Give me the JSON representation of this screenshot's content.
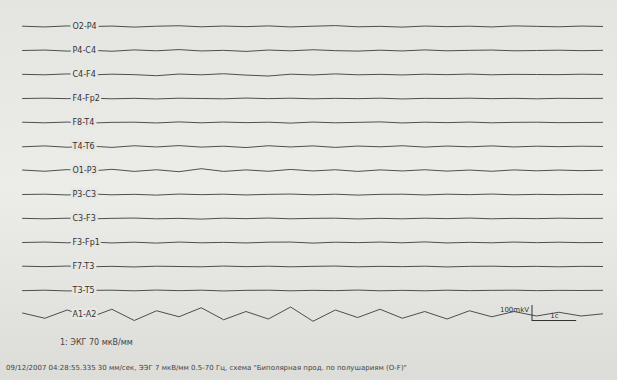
{
  "chart_data": {
    "type": "line",
    "tick_labels": false,
    "grid": false,
    "color": "#3c3c3c",
    "xlim": [
      0,
      13
    ],
    "ylim": [
      -80,
      80
    ],
    "x": [
      0,
      0.5,
      1,
      1.5,
      2,
      2.5,
      3,
      3.5,
      4,
      4.5,
      5,
      5.5,
      6,
      6.5,
      7,
      7.5,
      8,
      8.5,
      9,
      9.5,
      10,
      10.5,
      11,
      11.5,
      12,
      12.5,
      13
    ],
    "series": [
      {
        "name": "O2-P4",
        "values": [
          2,
          -3,
          4,
          -1,
          3,
          -4,
          2,
          5,
          -2,
          3,
          -1,
          4,
          -3,
          2,
          6,
          -2,
          1,
          -4,
          3,
          -1,
          2,
          -3,
          4,
          1,
          -2,
          3,
          0
        ]
      },
      {
        "name": "P4-C4",
        "values": [
          0,
          3,
          -4,
          2,
          -5,
          4,
          -2,
          6,
          -3,
          1,
          -6,
          3,
          -2,
          5,
          -1,
          -4,
          2,
          -3,
          4,
          -2,
          1,
          3,
          -2,
          0,
          2,
          -1,
          1
        ]
      },
      {
        "name": "C4-F4",
        "values": [
          1,
          -2,
          4,
          -3,
          2,
          -1,
          -8,
          3,
          -2,
          5,
          -4,
          -10,
          2,
          -3,
          4,
          -2,
          1,
          -3,
          2,
          -1,
          3,
          -2,
          1,
          0,
          -1,
          2,
          0
        ]
      },
      {
        "name": "F4-Fp2",
        "values": [
          0,
          2,
          -1,
          3,
          -2,
          1,
          -3,
          2,
          0,
          -2,
          3,
          -1,
          2,
          -2,
          1,
          -1,
          2,
          -3,
          1,
          0,
          2,
          -1,
          1,
          -2,
          1,
          0,
          1
        ]
      },
      {
        "name": "F8-T4",
        "values": [
          2,
          -2,
          3,
          -4,
          1,
          2,
          -3,
          4,
          -2,
          3,
          -1,
          2,
          -4,
          3,
          -2,
          1,
          4,
          -3,
          2,
          -1,
          3,
          -2,
          1,
          2,
          -1,
          0,
          1
        ]
      },
      {
        "name": "T4-T6",
        "values": [
          -2,
          4,
          -5,
          3,
          -6,
          5,
          -3,
          6,
          -4,
          2,
          -7,
          5,
          -3,
          4,
          -6,
          3,
          -2,
          5,
          -4,
          3,
          -2,
          4,
          -3,
          2,
          -1,
          2,
          0
        ]
      },
      {
        "name": "O1-P3",
        "values": [
          3,
          -5,
          6,
          -4,
          8,
          -6,
          5,
          -8,
          12,
          -6,
          4,
          -5,
          7,
          -3,
          5,
          -6,
          4,
          -3,
          5,
          -4,
          3,
          -5,
          4,
          -2,
          3,
          -1,
          2
        ]
      },
      {
        "name": "P3-C3",
        "values": [
          0,
          2,
          -3,
          4,
          -2,
          1,
          -4,
          3,
          -1,
          2,
          -3,
          1,
          3,
          -2,
          2,
          -4,
          1,
          2,
          -3,
          2,
          -1,
          3,
          -2,
          1,
          -1,
          1,
          0
        ]
      },
      {
        "name": "C3-F3",
        "values": [
          1,
          -2,
          2,
          -3,
          1,
          3,
          -2,
          1,
          -4,
          2,
          -1,
          3,
          -2,
          1,
          2,
          -3,
          1,
          -2,
          2,
          -1,
          3,
          -2,
          1,
          -1,
          2,
          0,
          1
        ]
      },
      {
        "name": "F3-Fp1",
        "values": [
          0,
          3,
          -2,
          4,
          -3,
          2,
          -4,
          3,
          -2,
          1,
          -3,
          2,
          3,
          -4,
          2,
          -1,
          3,
          -2,
          4,
          -3,
          1,
          -2,
          3,
          -1,
          2,
          -1,
          0
        ]
      },
      {
        "name": "F7-T3",
        "values": [
          2,
          -1,
          3,
          -2,
          1,
          -3,
          2,
          0,
          -2,
          3,
          -1,
          2,
          -2,
          1,
          3,
          -2,
          1,
          -1,
          2,
          -3,
          1,
          2,
          -1,
          1,
          -2,
          1,
          0
        ]
      },
      {
        "name": "T3-T5",
        "values": [
          -1,
          2,
          -3,
          1,
          2,
          -2,
          3,
          -1,
          2,
          -3,
          1,
          2,
          -2,
          1,
          -1,
          3,
          -2,
          1,
          -2,
          2,
          -1,
          1,
          2,
          -1,
          1,
          0,
          1
        ]
      },
      {
        "name": "A1-A2",
        "values": [
          10,
          -25,
          30,
          -20,
          35,
          -40,
          25,
          -15,
          45,
          -35,
          20,
          -30,
          50,
          -45,
          30,
          -20,
          35,
          -25,
          20,
          -30,
          25,
          -15,
          20,
          -10,
          15,
          -10,
          5
        ]
      }
    ],
    "scale_bar": {
      "amplitude": 100,
      "amplitude_label": "100mkV",
      "duration": 1,
      "duration_label": "1c"
    },
    "annotations": {
      "ecg": "1: ЭКГ 70 мкВ/мм",
      "footer": "09/12/2007 04:28:55.335   30 мм/сек,  ЭЭГ 7 мкВ/мм  0.5-70 Гц,  схема \"Биполярная прод. по полушариям (O-F)\""
    }
  }
}
